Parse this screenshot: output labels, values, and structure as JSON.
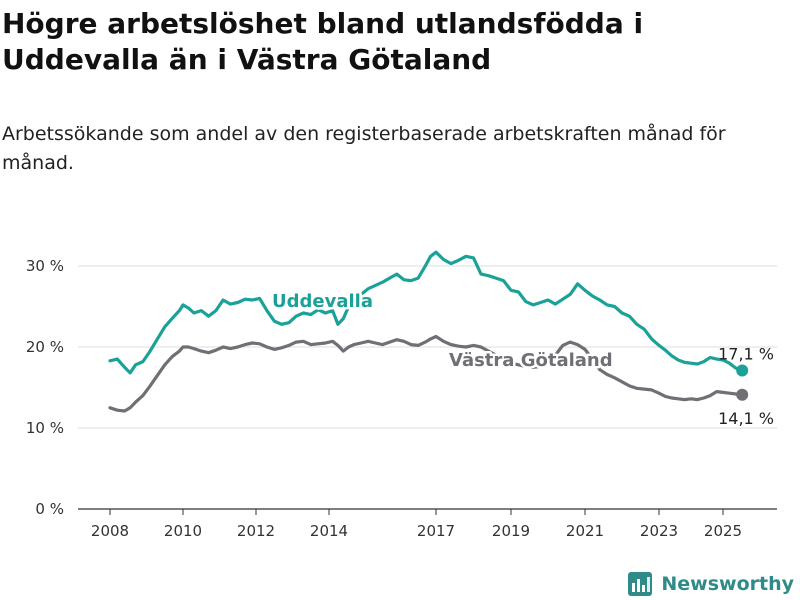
{
  "title": "Högre arbetslöshet bland utlandsfödda i Uddevalla än i Västra Götaland",
  "subtitle": "Arbetssökande som andel av den registerbaserade arbetskraften månad för månad.",
  "brand": {
    "label": "Newsworthy",
    "icon": "bar-chart-logo-icon"
  },
  "colors": {
    "uddevalla": "#1aa198",
    "vastra_gotaland": "#6f6f75",
    "grid": "#dcdcdc",
    "axis": "#333333"
  },
  "chart_data": {
    "type": "line",
    "xlim": [
      2007.8,
      2025.9
    ],
    "ylim": [
      0,
      32
    ],
    "x_ticks": [
      2008,
      2010,
      2012,
      2014,
      2017,
      2019,
      2021,
      2023,
      2025
    ],
    "x_tick_labels": [
      "2008",
      "2010",
      "2012",
      "2014",
      "2017",
      "2019",
      "2021",
      "2023",
      "2025"
    ],
    "y_ticks": [
      0,
      10,
      20,
      30
    ],
    "y_tick_labels": [
      "0 %",
      "10 %",
      "20 %",
      "30 %"
    ],
    "grid": "horizontal",
    "series": [
      {
        "name": "Uddevalla",
        "color_key": "uddevalla",
        "end_label": "17,1 %",
        "x": [
          2008.0,
          2008.2,
          2008.4,
          2008.55,
          2008.7,
          2008.9,
          2009.1,
          2009.3,
          2009.5,
          2009.7,
          2009.9,
          2010.0,
          2010.15,
          2010.3,
          2010.5,
          2010.7,
          2010.9,
          2011.1,
          2011.3,
          2011.5,
          2011.7,
          2011.9,
          2012.1,
          2012.3,
          2012.5,
          2012.7,
          2012.9,
          2013.1,
          2013.3,
          2013.5,
          2013.7,
          2013.9,
          2014.1,
          2014.25,
          2014.4,
          2014.55,
          2014.7,
          2014.9,
          2015.1,
          2015.3,
          2015.5,
          2015.7,
          2015.9,
          2016.1,
          2016.3,
          2016.5,
          2016.7,
          2016.85,
          2017.0,
          2017.2,
          2017.4,
          2017.6,
          2017.8,
          2018.0,
          2018.2,
          2018.4,
          2018.6,
          2018.8,
          2019.0,
          2019.2,
          2019.4,
          2019.6,
          2019.8,
          2020.0,
          2020.2,
          2020.4,
          2020.6,
          2020.8,
          2021.0,
          2021.2,
          2021.4,
          2021.6,
          2021.8,
          2022.0,
          2022.2,
          2022.4,
          2022.6,
          2022.8,
          2023.0,
          2023.2,
          2023.4,
          2023.6,
          2023.8,
          2024.0,
          2024.2,
          2024.4,
          2024.6,
          2024.8,
          2025.0,
          2025.2,
          2025.4,
          2025.6
        ],
        "y": [
          18.3,
          18.5,
          17.5,
          16.8,
          17.8,
          18.2,
          19.5,
          21,
          22.5,
          23.5,
          24.5,
          25.2,
          24.8,
          24.2,
          24.5,
          23.8,
          24.5,
          25.8,
          25.3,
          25.5,
          25.9,
          25.8,
          26,
          24.5,
          23.2,
          22.8,
          23,
          23.8,
          24.2,
          24,
          24.6,
          24.2,
          24.5,
          22.8,
          23.5,
          25,
          26,
          26.5,
          27.2,
          27.6,
          28,
          28.5,
          29,
          28.3,
          28.2,
          28.5,
          30,
          31.2,
          31.7,
          30.8,
          30.3,
          30.7,
          31.2,
          31,
          29,
          28.8,
          28.5,
          28.2,
          27,
          26.8,
          25.6,
          25.2,
          25.5,
          25.8,
          25.3,
          25.9,
          26.5,
          27.8,
          27,
          26.3,
          25.8,
          25.2,
          25,
          24.2,
          23.8,
          22.8,
          22.2,
          21,
          20.2,
          19.6,
          18.9,
          18.4,
          18.1,
          18,
          17.9,
          18.2,
          18.7,
          18.5,
          18.4,
          18,
          17.4,
          17.1
        ]
      },
      {
        "name": "Västra Götaland",
        "color_key": "vastra_gotaland",
        "end_label": "14,1 %",
        "x": [
          2008.0,
          2008.2,
          2008.4,
          2008.55,
          2008.7,
          2008.9,
          2009.1,
          2009.3,
          2009.5,
          2009.7,
          2009.9,
          2010.0,
          2010.15,
          2010.3,
          2010.5,
          2010.7,
          2010.9,
          2011.1,
          2011.3,
          2011.5,
          2011.7,
          2011.9,
          2012.1,
          2012.3,
          2012.5,
          2012.7,
          2012.9,
          2013.1,
          2013.3,
          2013.5,
          2013.7,
          2013.9,
          2014.1,
          2014.25,
          2014.4,
          2014.55,
          2014.7,
          2014.9,
          2015.1,
          2015.3,
          2015.5,
          2015.7,
          2015.9,
          2016.1,
          2016.3,
          2016.5,
          2016.7,
          2016.85,
          2017.0,
          2017.2,
          2017.4,
          2017.6,
          2017.8,
          2018.0,
          2018.2,
          2018.4,
          2018.6,
          2018.8,
          2019.0,
          2019.2,
          2019.4,
          2019.6,
          2019.8,
          2020.0,
          2020.2,
          2020.4,
          2020.6,
          2020.8,
          2021.0,
          2021.2,
          2021.4,
          2021.6,
          2021.8,
          2022.0,
          2022.2,
          2022.4,
          2022.6,
          2022.8,
          2023.0,
          2023.2,
          2023.4,
          2023.6,
          2023.8,
          2024.0,
          2024.2,
          2024.4,
          2024.6,
          2024.8,
          2025.0,
          2025.2,
          2025.4,
          2025.6
        ],
        "y": [
          12.5,
          12.2,
          12.1,
          12.5,
          13.2,
          14,
          15.2,
          16.5,
          17.8,
          18.8,
          19.5,
          20,
          20,
          19.8,
          19.5,
          19.3,
          19.6,
          20,
          19.8,
          20,
          20.3,
          20.5,
          20.4,
          20,
          19.7,
          19.9,
          20.2,
          20.6,
          20.7,
          20.3,
          20.4,
          20.5,
          20.7,
          20.2,
          19.5,
          20,
          20.3,
          20.5,
          20.7,
          20.5,
          20.3,
          20.6,
          20.9,
          20.7,
          20.3,
          20.2,
          20.6,
          21,
          21.3,
          20.7,
          20.3,
          20.1,
          20,
          20.2,
          20,
          19.5,
          19,
          18.5,
          18,
          17.8,
          17.6,
          17.5,
          17.6,
          18,
          19,
          20.2,
          20.6,
          20.3,
          19.7,
          18.5,
          17.2,
          16.6,
          16.2,
          15.7,
          15.2,
          14.9,
          14.8,
          14.7,
          14.3,
          13.9,
          13.7,
          13.6,
          13.5,
          13.6,
          13.5,
          13.7,
          14,
          14.5,
          14.4,
          14.3,
          14.2,
          14.1
        ]
      }
    ],
    "series_labels": [
      "Uddevalla",
      "Västra Götaland"
    ]
  }
}
